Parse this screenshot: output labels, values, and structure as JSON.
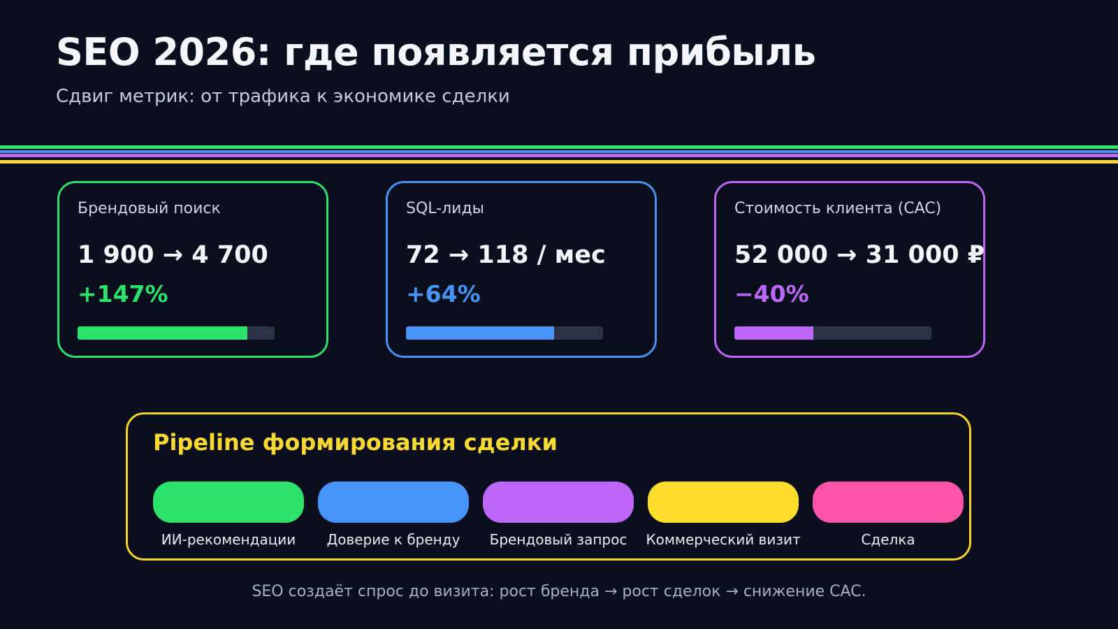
{
  "page": {
    "title": "SEO 2026: где появляется прибыль",
    "subtitle": "Сдвиг метрик: от трафика к экономике сделки",
    "footer": "SEO создаёт спрос до визита: рост бренда → рост сделок → снижение CAC."
  },
  "colors": {
    "background": "#0b0f1d",
    "green": "#2be26c",
    "blue": "#4893f8",
    "purple": "#bd67f8",
    "yellow": "#f8d832",
    "pink": "#fe55a8",
    "progress_track": "#2a3345"
  },
  "divider_stripes": [
    "#2be26c",
    "#4893f8",
    "#bd67f8",
    "#f8d832"
  ],
  "metric_cards": [
    {
      "label": "Брендовый поиск",
      "value": "1 900 → 4 700",
      "delta": "+147%",
      "progress_percent": 86,
      "accent": "#2be26c"
    },
    {
      "label": "SQL-лиды",
      "value": "72 → 118 / мес",
      "delta": "+64%",
      "progress_percent": 75,
      "accent": "#4893f8"
    },
    {
      "label": "Стоимость клиента (CAC)",
      "value": "52 000 → 31 000 ₽",
      "delta": "−40%",
      "progress_percent": 40,
      "accent": "#bd67f8"
    }
  ],
  "pipeline": {
    "title": "Pipeline формирования сделки",
    "stages": [
      {
        "label": "ИИ-рекомендации",
        "color": "#2be26c"
      },
      {
        "label": "Доверие к бренду",
        "color": "#4893f8"
      },
      {
        "label": "Брендовый запрос",
        "color": "#bd67f8"
      },
      {
        "label": "Коммерческий визит",
        "color": "#fedd2b"
      },
      {
        "label": "Сделка",
        "color": "#fe55a8"
      }
    ]
  },
  "chart_data": {
    "type": "bar",
    "title": "SEO 2026: где появляется прибыль",
    "categories": [
      "Брендовый поиск",
      "SQL-лиды",
      "Стоимость клиента (CAC)"
    ],
    "series": [
      {
        "name": "before",
        "values": [
          1900,
          72,
          52000
        ]
      },
      {
        "name": "after",
        "values": [
          4700,
          118,
          31000
        ]
      },
      {
        "name": "change_percent",
        "values": [
          147,
          64,
          -40
        ]
      },
      {
        "name": "progress_bar_fill_percent",
        "values": [
          86,
          75,
          40
        ]
      }
    ],
    "legend_position": "none",
    "grid": false
  }
}
